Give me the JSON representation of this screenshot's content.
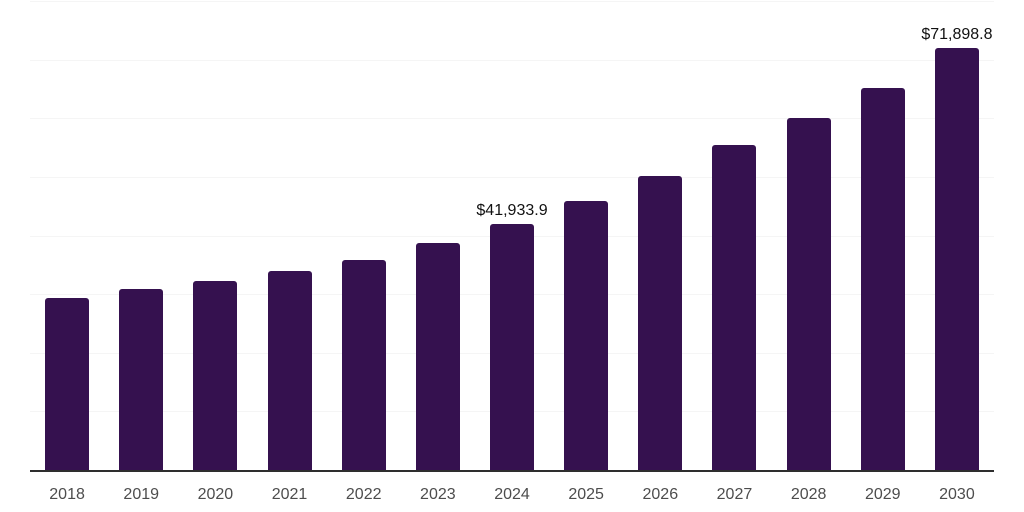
{
  "chart_data": {
    "type": "bar",
    "categories": [
      "2018",
      "2019",
      "2020",
      "2021",
      "2022",
      "2023",
      "2024",
      "2025",
      "2026",
      "2027",
      "2028",
      "2029",
      "2030"
    ],
    "values": [
      29400,
      30900,
      32200,
      33900,
      35800,
      38700,
      41933.9,
      45900,
      50200,
      55500,
      60000,
      65100,
      71898.8
    ],
    "data_labels": [
      "",
      "",
      "",
      "",
      "",
      "",
      "$41,933.9",
      "",
      "",
      "",
      "",
      "",
      "$71,898.8"
    ],
    "title": "",
    "xlabel": "",
    "ylabel": "",
    "ylim": [
      0,
      80000
    ],
    "gridline_step": 10000,
    "grid": true,
    "y_axis_labels_visible": false,
    "legend_position": "none"
  },
  "colors": {
    "bar": "#35114f",
    "axis_line": "#2e2e2e",
    "gridline": "#f5f5f5",
    "value_label_text": "#111111",
    "tick_label_text": "#4d4d4d",
    "background": "#ffffff"
  }
}
